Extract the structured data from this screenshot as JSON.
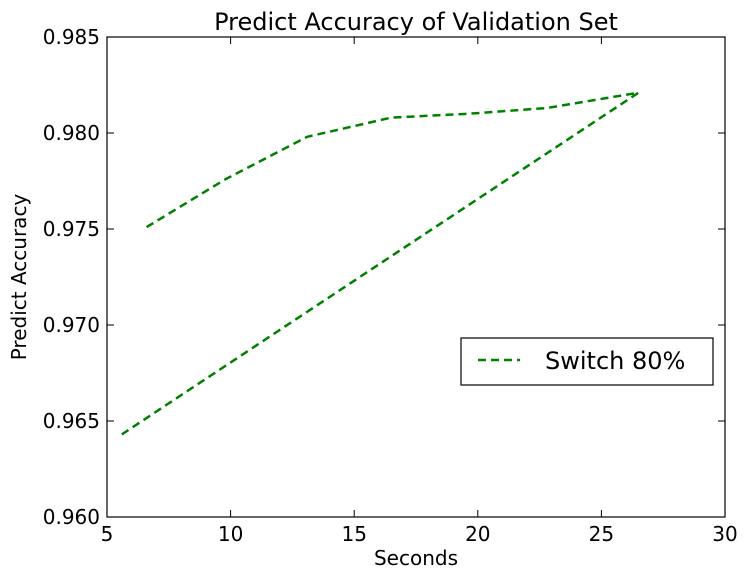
{
  "chart_data": {
    "type": "line",
    "title": "Predict Accuracy of Validation Set",
    "xlabel": "Seconds",
    "ylabel": "Predict Accuracy",
    "xlim": [
      5,
      30
    ],
    "ylim": [
      0.96,
      0.985
    ],
    "xticks": [
      "5",
      "10",
      "15",
      "20",
      "25",
      "30"
    ],
    "yticks": [
      "0.960",
      "0.965",
      "0.970",
      "0.975",
      "0.980",
      "0.985"
    ],
    "grid": false,
    "legend_position": "center-right",
    "series": [
      {
        "name": "Switch 80%",
        "color": "#008000",
        "style": "dashed",
        "x": [
          5.6,
          26.5,
          22.8,
          19.6,
          16.5,
          13.1,
          9.8,
          6.6
        ],
        "y": [
          0.9643,
          0.9821,
          0.9813,
          0.981,
          0.9808,
          0.9798,
          0.9776,
          0.9751
        ]
      }
    ]
  }
}
